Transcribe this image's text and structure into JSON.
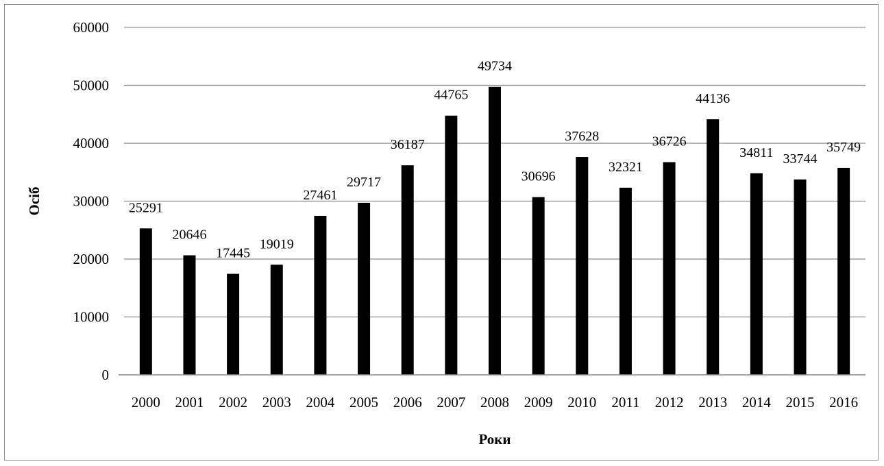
{
  "chart_data": {
    "type": "bar",
    "title": "",
    "xlabel": "Роки",
    "ylabel": "Осіб",
    "ylim": [
      0,
      60000
    ],
    "yticks": [
      0,
      10000,
      20000,
      30000,
      40000,
      50000,
      60000
    ],
    "grid": true,
    "legend": "none",
    "bar_color": "#000000",
    "categories": [
      "2000",
      "2001",
      "2002",
      "2003",
      "2004",
      "2005",
      "2006",
      "2007",
      "2008",
      "2009",
      "2010",
      "2011",
      "2012",
      "2013",
      "2014",
      "2015",
      "2016"
    ],
    "values": [
      25291,
      20646,
      17445,
      19019,
      27461,
      29717,
      36187,
      44765,
      49734,
      30696,
      37628,
      32321,
      36726,
      44136,
      34811,
      33744,
      35749
    ]
  }
}
